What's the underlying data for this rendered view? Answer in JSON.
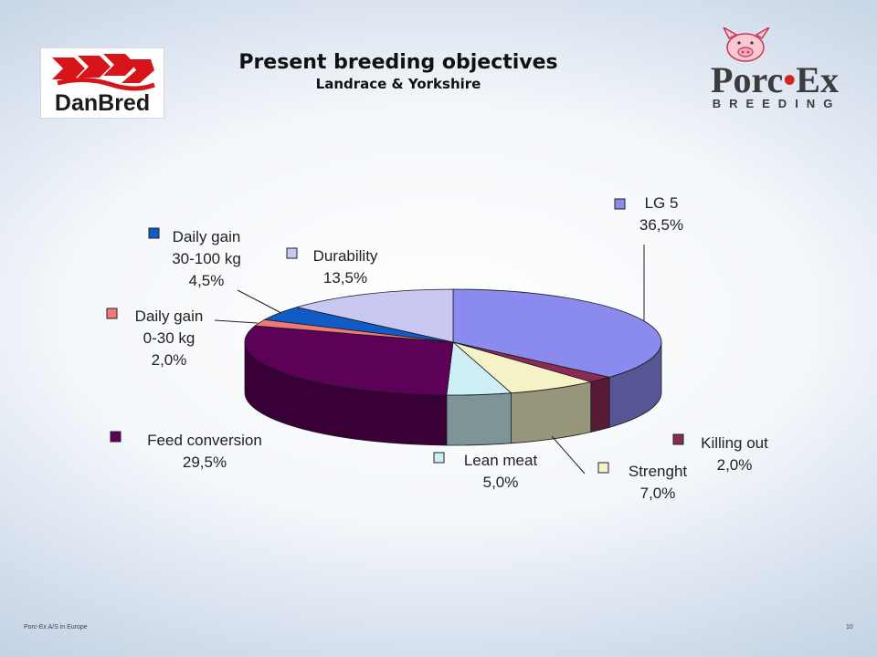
{
  "header": {
    "title": "Present breeding objectives",
    "subtitle": "Landrace & Yorkshire"
  },
  "logos": {
    "left_word": "DanBred",
    "right_word_a": "Porc",
    "right_word_dot": "•",
    "right_word_b": "Ex",
    "right_sub": "BREEDING"
  },
  "chart_data": {
    "type": "pie",
    "style": "3d-exploded-none",
    "start": "top, clockwise",
    "slices": [
      {
        "name": "LG 5",
        "value": 36.5,
        "value_label": "36,5%",
        "color": "#8b8bef"
      },
      {
        "name": "Killing out",
        "value": 2.0,
        "value_label": "2,0%",
        "color": "#8a2a55"
      },
      {
        "name": "Strenght",
        "value": 7.0,
        "value_label": "7,0%",
        "color": "#f4f2c6"
      },
      {
        "name": "Lean meat",
        "value": 5.0,
        "value_label": "5,0%",
        "color": "#cdeef4"
      },
      {
        "name": "Feed conversion",
        "value": 29.5,
        "value_label": "29,5%",
        "color": "#5c0058"
      },
      {
        "name": "Daily gain 0-30 kg",
        "value": 2.0,
        "value_label": "2,0%",
        "color": "#f07878"
      },
      {
        "name": "Daily gain 30-100 kg",
        "value": 4.5,
        "value_label": "4,5%",
        "color": "#0f5cc6"
      },
      {
        "name": "Durability",
        "value": 13.5,
        "value_label": "13,5%",
        "color": "#c8c8f2"
      }
    ],
    "labels": [
      {
        "slice": 0,
        "lines": [
          "LG 5",
          "36,5%"
        ]
      },
      {
        "slice": 1,
        "lines": [
          "Killing out",
          "2,0%"
        ]
      },
      {
        "slice": 2,
        "lines": [
          "Strenght",
          "7,0%"
        ]
      },
      {
        "slice": 3,
        "lines": [
          "Lean meat",
          "5,0%"
        ]
      },
      {
        "slice": 4,
        "lines": [
          "Feed conversion",
          "29,5%"
        ]
      },
      {
        "slice": 5,
        "lines": [
          "Daily gain",
          "0-30 kg",
          "2,0%"
        ]
      },
      {
        "slice": 6,
        "lines": [
          "Daily gain",
          "30-100 kg",
          "4,5%"
        ]
      },
      {
        "slice": 7,
        "lines": [
          "Durability",
          "13,5%"
        ]
      }
    ]
  },
  "footer": {
    "left": "Porc-Ex A/S in Europe",
    "page": "10"
  }
}
